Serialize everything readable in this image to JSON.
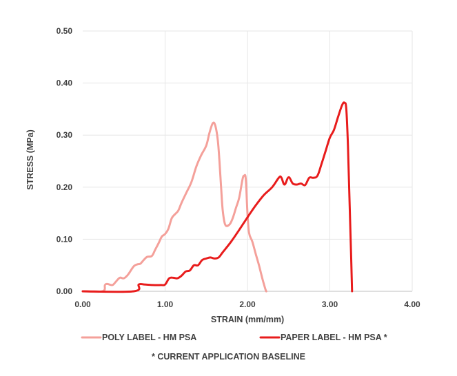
{
  "chart_data": {
    "type": "line",
    "title": "",
    "xlabel": "STRAIN (mm/mm)",
    "ylabel": "STRESS (MPa)",
    "xlim": [
      0,
      4
    ],
    "ylim": [
      0,
      0.5
    ],
    "x_ticks": [
      "0.00",
      "1.00",
      "2.00",
      "3.00",
      "4.00"
    ],
    "y_ticks": [
      "0.00",
      "0.10",
      "0.20",
      "0.30",
      "0.40",
      "0.50"
    ],
    "grid": true,
    "legend_position": "bottom",
    "footnote": "* CURRENT APPLICATION  BASELINE",
    "series": [
      {
        "name": "POLY LABEL - HM PSA",
        "color": "#f4a09a",
        "points": [
          [
            0,
            0
          ],
          [
            0.24,
            0
          ],
          [
            0.27,
            0.012
          ],
          [
            0.3,
            0.014
          ],
          [
            0.36,
            0.012
          ],
          [
            0.4,
            0.018
          ],
          [
            0.45,
            0.026
          ],
          [
            0.5,
            0.025
          ],
          [
            0.55,
            0.032
          ],
          [
            0.62,
            0.048
          ],
          [
            0.67,
            0.052
          ],
          [
            0.7,
            0.053
          ],
          [
            0.74,
            0.06
          ],
          [
            0.78,
            0.066
          ],
          [
            0.84,
            0.068
          ],
          [
            0.88,
            0.08
          ],
          [
            0.92,
            0.092
          ],
          [
            0.96,
            0.105
          ],
          [
            1.0,
            0.11
          ],
          [
            1.04,
            0.12
          ],
          [
            1.08,
            0.14
          ],
          [
            1.12,
            0.148
          ],
          [
            1.16,
            0.155
          ],
          [
            1.2,
            0.17
          ],
          [
            1.26,
            0.19
          ],
          [
            1.32,
            0.21
          ],
          [
            1.38,
            0.24
          ],
          [
            1.44,
            0.262
          ],
          [
            1.5,
            0.28
          ],
          [
            1.54,
            0.305
          ],
          [
            1.58,
            0.323
          ],
          [
            1.61,
            0.318
          ],
          [
            1.64,
            0.29
          ],
          [
            1.66,
            0.25
          ],
          [
            1.68,
            0.2
          ],
          [
            1.7,
            0.155
          ],
          [
            1.73,
            0.128
          ],
          [
            1.78,
            0.128
          ],
          [
            1.82,
            0.14
          ],
          [
            1.86,
            0.16
          ],
          [
            1.9,
            0.18
          ],
          [
            1.94,
            0.215
          ],
          [
            1.96,
            0.222
          ],
          [
            1.98,
            0.215
          ],
          [
            2.0,
            0.15
          ],
          [
            2.02,
            0.112
          ],
          [
            2.06,
            0.095
          ],
          [
            2.1,
            0.072
          ],
          [
            2.14,
            0.05
          ],
          [
            2.18,
            0.025
          ],
          [
            2.22,
            0.003
          ],
          [
            2.23,
            0
          ]
        ]
      },
      {
        "name": "PAPER LABEL - HM PSA *",
        "color": "#e81c1c",
        "points": [
          [
            0,
            0
          ],
          [
            0.62,
            0
          ],
          [
            0.68,
            0.013
          ],
          [
            0.75,
            0.013
          ],
          [
            0.85,
            0.012
          ],
          [
            0.95,
            0.012
          ],
          [
            1.0,
            0.013
          ],
          [
            1.05,
            0.025
          ],
          [
            1.1,
            0.026
          ],
          [
            1.15,
            0.025
          ],
          [
            1.2,
            0.03
          ],
          [
            1.25,
            0.038
          ],
          [
            1.3,
            0.04
          ],
          [
            1.35,
            0.05
          ],
          [
            1.4,
            0.05
          ],
          [
            1.45,
            0.06
          ],
          [
            1.5,
            0.063
          ],
          [
            1.55,
            0.065
          ],
          [
            1.6,
            0.063
          ],
          [
            1.65,
            0.065
          ],
          [
            1.7,
            0.075
          ],
          [
            1.8,
            0.095
          ],
          [
            1.9,
            0.118
          ],
          [
            2.0,
            0.142
          ],
          [
            2.1,
            0.165
          ],
          [
            2.2,
            0.185
          ],
          [
            2.3,
            0.2
          ],
          [
            2.38,
            0.218
          ],
          [
            2.41,
            0.219
          ],
          [
            2.45,
            0.205
          ],
          [
            2.5,
            0.219
          ],
          [
            2.55,
            0.207
          ],
          [
            2.6,
            0.205
          ],
          [
            2.65,
            0.207
          ],
          [
            2.7,
            0.204
          ],
          [
            2.75,
            0.218
          ],
          [
            2.8,
            0.218
          ],
          [
            2.85,
            0.222
          ],
          [
            2.9,
            0.245
          ],
          [
            2.95,
            0.27
          ],
          [
            3.0,
            0.295
          ],
          [
            3.05,
            0.31
          ],
          [
            3.1,
            0.335
          ],
          [
            3.15,
            0.358
          ],
          [
            3.18,
            0.362
          ],
          [
            3.2,
            0.35
          ],
          [
            3.22,
            0.28
          ],
          [
            3.24,
            0.17
          ],
          [
            3.26,
            0.06
          ],
          [
            3.27,
            0
          ]
        ]
      }
    ]
  }
}
